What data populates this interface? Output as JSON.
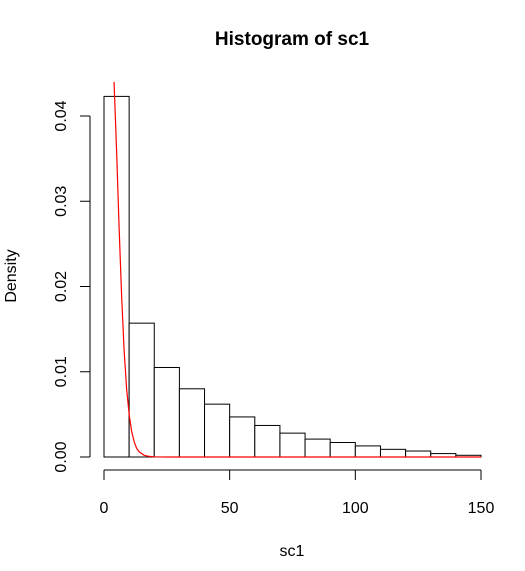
{
  "chart_data": {
    "type": "bar",
    "title": "Histogram of sc1",
    "xlabel": "sc1",
    "ylabel": "Density",
    "xlim": [
      0,
      150
    ],
    "ylim": [
      0,
      0.044
    ],
    "bin_width": 10,
    "bins": [
      {
        "x0": 0,
        "x1": 10,
        "density": 0.0423
      },
      {
        "x0": 10,
        "x1": 20,
        "density": 0.0157
      },
      {
        "x0": 20,
        "x1": 30,
        "density": 0.0105
      },
      {
        "x0": 30,
        "x1": 40,
        "density": 0.008
      },
      {
        "x0": 40,
        "x1": 50,
        "density": 0.0062
      },
      {
        "x0": 50,
        "x1": 60,
        "density": 0.0047
      },
      {
        "x0": 60,
        "x1": 70,
        "density": 0.0037
      },
      {
        "x0": 70,
        "x1": 80,
        "density": 0.0028
      },
      {
        "x0": 80,
        "x1": 90,
        "density": 0.0021
      },
      {
        "x0": 90,
        "x1": 100,
        "density": 0.0017
      },
      {
        "x0": 100,
        "x1": 110,
        "density": 0.0013
      },
      {
        "x0": 110,
        "x1": 120,
        "density": 0.0009
      },
      {
        "x0": 120,
        "x1": 130,
        "density": 0.0007
      },
      {
        "x0": 130,
        "x1": 140,
        "density": 0.0004
      },
      {
        "x0": 140,
        "x1": 150,
        "density": 0.0002
      }
    ],
    "x_ticks": [
      0,
      50,
      100,
      150
    ],
    "x_tick_labels": [
      "0",
      "50",
      "100",
      "150"
    ],
    "y_ticks": [
      0,
      0.01,
      0.02,
      0.03,
      0.04
    ],
    "y_tick_labels": [
      "0.00",
      "0.01",
      "0.02",
      "0.03",
      "0.04"
    ],
    "overlay_curve": {
      "type": "line",
      "color": "#ff0000",
      "x": [
        4,
        5,
        6,
        7,
        8,
        9,
        10,
        11,
        12,
        13,
        14,
        16,
        18,
        20,
        25,
        30,
        50,
        100,
        150
      ],
      "y": [
        0.044,
        0.036,
        0.027,
        0.019,
        0.0125,
        0.008,
        0.005,
        0.003,
        0.0018,
        0.001,
        0.0006,
        0.0002,
        7e-05,
        2e-05,
        0,
        0,
        0,
        0,
        0
      ]
    },
    "bar_fill": "#ffffff",
    "bar_stroke": "#000000",
    "grid": false,
    "legend": false
  }
}
